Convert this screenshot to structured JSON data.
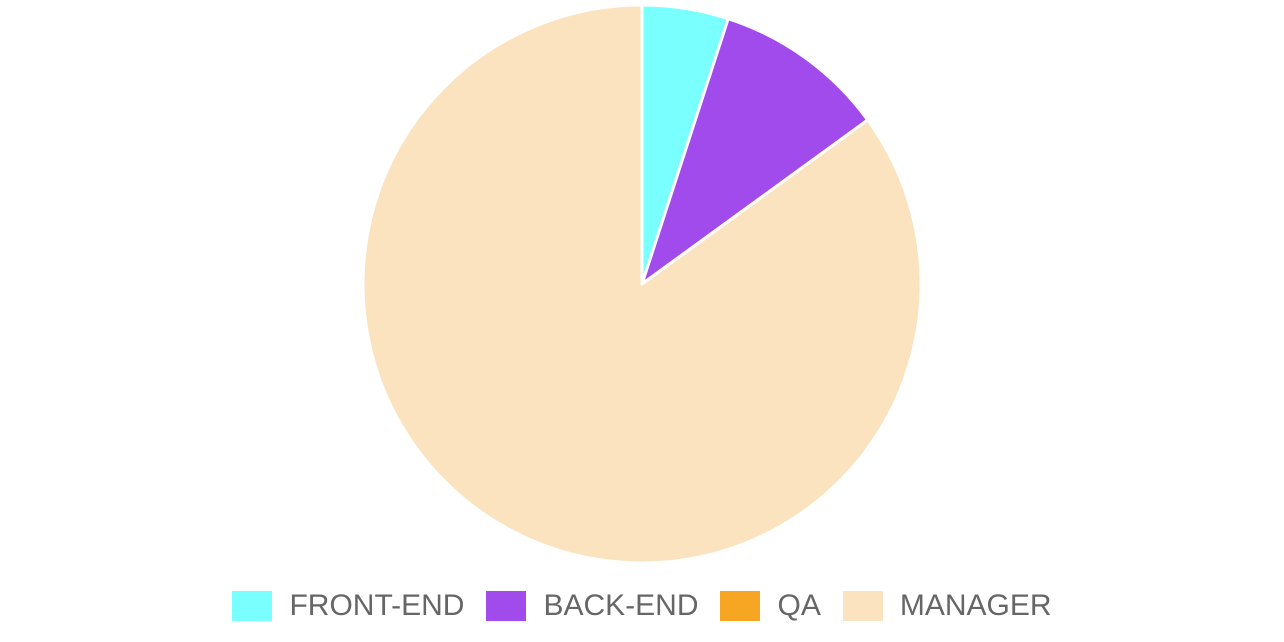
{
  "chart_data": {
    "type": "pie",
    "categories": [
      "FRONT-END",
      "BACK-END",
      "QA",
      "MANAGER"
    ],
    "values": [
      5,
      10,
      0,
      85
    ],
    "colors": [
      "#7affff",
      "#a24bec",
      "#f6a623",
      "#fae3be"
    ],
    "legend_position": "bottom",
    "slice_border_color": "#ffffff"
  },
  "legend": {
    "items": [
      {
        "label": "FRONT-END",
        "color": "#7affff"
      },
      {
        "label": "BACK-END",
        "color": "#a24bec"
      },
      {
        "label": "QA",
        "color": "#f6a623"
      },
      {
        "label": "MANAGER",
        "color": "#fae3be"
      }
    ]
  }
}
